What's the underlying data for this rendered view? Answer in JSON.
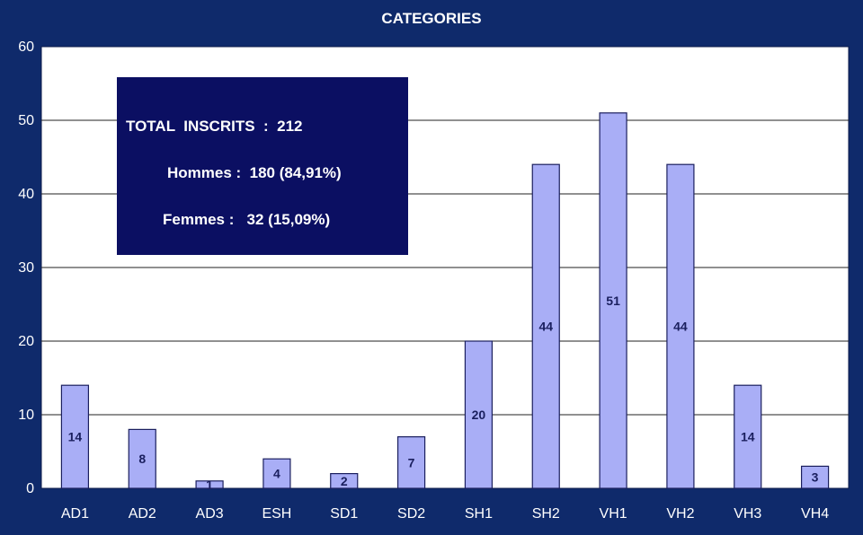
{
  "chart_data": {
    "type": "bar",
    "title": "CATEGORIES",
    "categories": [
      "AD1",
      "AD2",
      "AD3",
      "ESH",
      "SD1",
      "SD2",
      "SH1",
      "SH2",
      "VH1",
      "VH2",
      "VH3",
      "VH4"
    ],
    "values": [
      14,
      8,
      1,
      4,
      2,
      7,
      20,
      44,
      51,
      44,
      14,
      3
    ],
    "data_labels": [
      "14",
      "8",
      "1",
      "4",
      "2",
      "7",
      "20",
      "44",
      "51",
      "44",
      "14",
      "3"
    ],
    "ylim": [
      0,
      60
    ],
    "yticks": [
      0,
      10,
      20,
      30,
      40,
      50,
      60
    ],
    "grid": true,
    "legend": "none",
    "colors": {
      "background": "#0f2a6b",
      "plot_area": "#ffffff",
      "bar_fill": "#a9aef6",
      "bar_stroke": "#1b1f5e",
      "annotation_box": "#0b0f62"
    },
    "annotation": {
      "line1": "TOTAL  INSCRITS  :  212",
      "line2": "Hommes :  180 (84,91%)",
      "line3": "Femmes :   32 (15,09%)"
    }
  }
}
